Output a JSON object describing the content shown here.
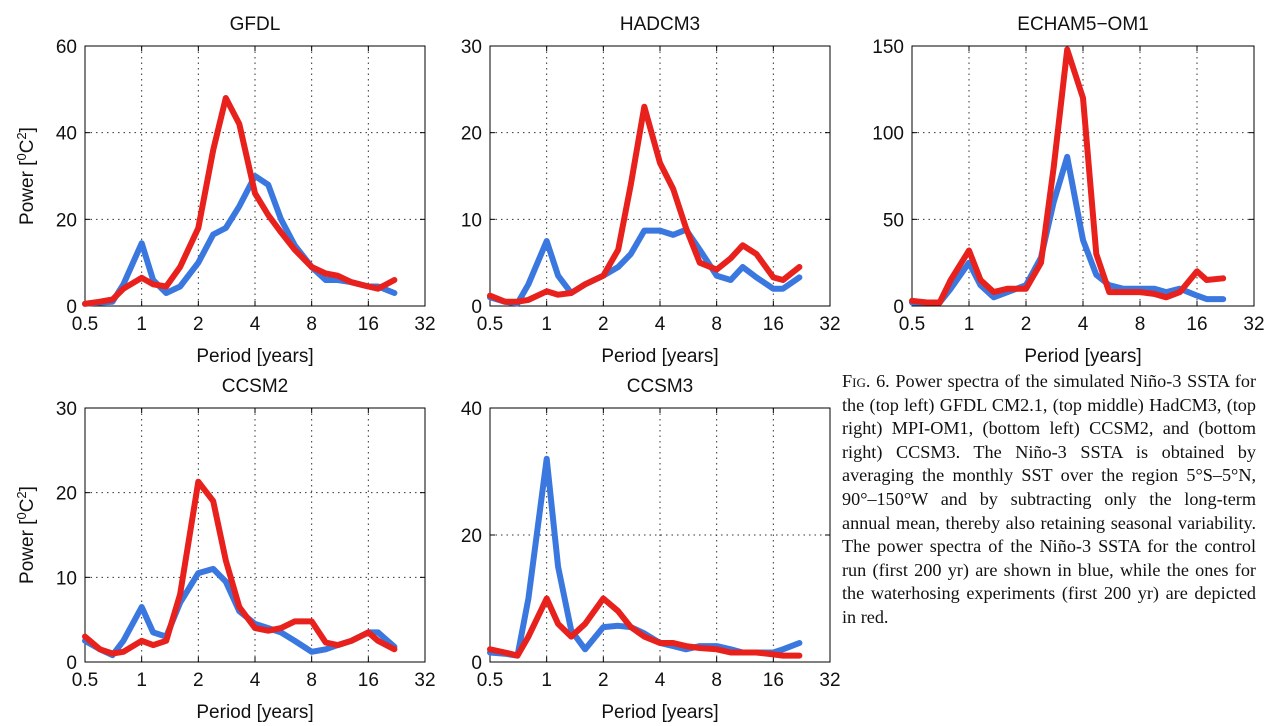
{
  "chart_data": [
    {
      "type": "line",
      "title": "GFDL",
      "xlabel": "Period [years]",
      "ylabel": "Power [0C2]",
      "xscale": "log2",
      "xlim": [
        0.5,
        32
      ],
      "ylim": [
        0,
        60
      ],
      "xticks": [
        "0.5",
        "1",
        "2",
        "4",
        "8",
        "16",
        "32"
      ],
      "yticks": [
        0,
        20,
        40,
        60
      ],
      "grid": true,
      "series": [
        {
          "color": "#3a78e0",
          "points": [
            [
              0.5,
              0.5
            ],
            [
              0.6,
              0.8
            ],
            [
              0.7,
              1
            ],
            [
              0.8,
              5
            ],
            [
              1,
              14.5
            ],
            [
              1.15,
              6
            ],
            [
              1.35,
              3
            ],
            [
              1.6,
              4.5
            ],
            [
              2,
              10
            ],
            [
              2.4,
              16.5
            ],
            [
              2.8,
              18
            ],
            [
              3.3,
              23
            ],
            [
              4,
              30
            ],
            [
              4.7,
              28
            ],
            [
              5.5,
              20
            ],
            [
              6.5,
              14
            ],
            [
              8,
              9
            ],
            [
              9.5,
              6
            ],
            [
              11,
              6
            ],
            [
              13,
              5.5
            ],
            [
              16,
              4.5
            ],
            [
              18,
              4.5
            ],
            [
              22,
              3
            ]
          ]
        },
        {
          "color": "#e8211d",
          "points": [
            [
              0.5,
              0.5
            ],
            [
              0.6,
              1
            ],
            [
              0.7,
              1.5
            ],
            [
              0.8,
              4
            ],
            [
              1,
              6.5
            ],
            [
              1.15,
              5
            ],
            [
              1.35,
              4.5
            ],
            [
              1.6,
              9
            ],
            [
              2,
              18
            ],
            [
              2.4,
              36
            ],
            [
              2.8,
              48
            ],
            [
              3.3,
              42
            ],
            [
              4,
              26
            ],
            [
              4.7,
              21
            ],
            [
              5.5,
              17
            ],
            [
              6.5,
              13
            ],
            [
              8,
              9
            ],
            [
              9.5,
              7.5
            ],
            [
              11,
              7
            ],
            [
              13,
              5.5
            ],
            [
              16,
              4.5
            ],
            [
              18,
              4
            ],
            [
              22,
              6
            ]
          ]
        }
      ]
    },
    {
      "type": "line",
      "title": "HADCM3",
      "xlabel": "Period [years]",
      "ylabel": "",
      "xscale": "log2",
      "xlim": [
        0.5,
        32
      ],
      "ylim": [
        0,
        30
      ],
      "xticks": [
        "0.5",
        "1",
        "2",
        "4",
        "8",
        "16",
        "32"
      ],
      "yticks": [
        0,
        10,
        20,
        30
      ],
      "grid": true,
      "series": [
        {
          "color": "#3a78e0",
          "points": [
            [
              0.5,
              1
            ],
            [
              0.6,
              0.5
            ],
            [
              0.7,
              0.3
            ],
            [
              0.8,
              2.5
            ],
            [
              1,
              7.5
            ],
            [
              1.15,
              3.5
            ],
            [
              1.35,
              1.5
            ],
            [
              1.6,
              2.5
            ],
            [
              2,
              3.5
            ],
            [
              2.4,
              4.5
            ],
            [
              2.8,
              6
            ],
            [
              3.3,
              8.7
            ],
            [
              4,
              8.7
            ],
            [
              4.7,
              8.2
            ],
            [
              5.5,
              8.8
            ],
            [
              6.5,
              6.5
            ],
            [
              8,
              3.5
            ],
            [
              9.5,
              3
            ],
            [
              11,
              4.5
            ],
            [
              13,
              3.3
            ],
            [
              16,
              2
            ],
            [
              18,
              2
            ],
            [
              22,
              3.3
            ]
          ]
        },
        {
          "color": "#e8211d",
          "points": [
            [
              0.5,
              1.2
            ],
            [
              0.6,
              0.5
            ],
            [
              0.7,
              0.5
            ],
            [
              0.8,
              0.7
            ],
            [
              1,
              1.7
            ],
            [
              1.15,
              1.3
            ],
            [
              1.35,
              1.5
            ],
            [
              1.6,
              2.5
            ],
            [
              2,
              3.5
            ],
            [
              2.4,
              6.5
            ],
            [
              2.8,
              14
            ],
            [
              3.3,
              23
            ],
            [
              4,
              16.5
            ],
            [
              4.7,
              13.5
            ],
            [
              5.5,
              9
            ],
            [
              6.5,
              5
            ],
            [
              8,
              4.2
            ],
            [
              9.5,
              5.5
            ],
            [
              11,
              7
            ],
            [
              13,
              6
            ],
            [
              16,
              3.3
            ],
            [
              18,
              3
            ],
            [
              22,
              4.5
            ]
          ]
        }
      ]
    },
    {
      "type": "line",
      "title": "ECHAM5−OM1",
      "xlabel": "Period [years]",
      "ylabel": "",
      "xscale": "log2",
      "xlim": [
        0.5,
        32
      ],
      "ylim": [
        0,
        150
      ],
      "xticks": [
        "0.5",
        "1",
        "2",
        "4",
        "8",
        "16",
        "32"
      ],
      "yticks": [
        0,
        50,
        100,
        150
      ],
      "grid": true,
      "series": [
        {
          "color": "#3a78e0",
          "points": [
            [
              0.5,
              2
            ],
            [
              0.6,
              2
            ],
            [
              0.7,
              2
            ],
            [
              0.8,
              10
            ],
            [
              1,
              25
            ],
            [
              1.15,
              12
            ],
            [
              1.35,
              5
            ],
            [
              1.6,
              8
            ],
            [
              2,
              12
            ],
            [
              2.4,
              28
            ],
            [
              2.8,
              60
            ],
            [
              3.3,
              86
            ],
            [
              4,
              38
            ],
            [
              4.7,
              18
            ],
            [
              5.5,
              12
            ],
            [
              6.5,
              10
            ],
            [
              8,
              10
            ],
            [
              9.5,
              10
            ],
            [
              11,
              8
            ],
            [
              13,
              10
            ],
            [
              16,
              6
            ],
            [
              18,
              4
            ],
            [
              22,
              4
            ]
          ]
        },
        {
          "color": "#e8211d",
          "points": [
            [
              0.5,
              3
            ],
            [
              0.6,
              2
            ],
            [
              0.7,
              2
            ],
            [
              0.8,
              15
            ],
            [
              1,
              32
            ],
            [
              1.15,
              15
            ],
            [
              1.35,
              8
            ],
            [
              1.6,
              10
            ],
            [
              2,
              10
            ],
            [
              2.4,
              25
            ],
            [
              2.8,
              80
            ],
            [
              3.3,
              148
            ],
            [
              4,
              120
            ],
            [
              4.7,
              30
            ],
            [
              5.5,
              8
            ],
            [
              6.5,
              8
            ],
            [
              8,
              8
            ],
            [
              9.5,
              7
            ],
            [
              11,
              5
            ],
            [
              13,
              8
            ],
            [
              16,
              20
            ],
            [
              18,
              15
            ],
            [
              22,
              16
            ]
          ]
        }
      ]
    },
    {
      "type": "line",
      "title": "CCSM2",
      "xlabel": "Period [years]",
      "ylabel": "Power [0C2]",
      "xscale": "log2",
      "xlim": [
        0.5,
        32
      ],
      "ylim": [
        0,
        30
      ],
      "xticks": [
        "0.5",
        "1",
        "2",
        "4",
        "8",
        "16",
        "32"
      ],
      "yticks": [
        0,
        10,
        20,
        30
      ],
      "grid": true,
      "series": [
        {
          "color": "#3a78e0",
          "points": [
            [
              0.5,
              2.5
            ],
            [
              0.6,
              1.5
            ],
            [
              0.7,
              0.8
            ],
            [
              0.8,
              2.5
            ],
            [
              1,
              6.5
            ],
            [
              1.15,
              3.5
            ],
            [
              1.35,
              3
            ],
            [
              1.6,
              7
            ],
            [
              2,
              10.5
            ],
            [
              2.4,
              11
            ],
            [
              2.8,
              9.5
            ],
            [
              3.3,
              6
            ],
            [
              4,
              4.5
            ],
            [
              4.7,
              4
            ],
            [
              5.5,
              3.5
            ],
            [
              6.5,
              2.5
            ],
            [
              8,
              1.2
            ],
            [
              9.5,
              1.5
            ],
            [
              11,
              2
            ],
            [
              13,
              2.5
            ],
            [
              16,
              3.5
            ],
            [
              18,
              3.5
            ],
            [
              22,
              1.8
            ]
          ]
        },
        {
          "color": "#e8211d",
          "points": [
            [
              0.5,
              3
            ],
            [
              0.6,
              1.5
            ],
            [
              0.7,
              1
            ],
            [
              0.8,
              1.2
            ],
            [
              1,
              2.5
            ],
            [
              1.15,
              2
            ],
            [
              1.35,
              2.5
            ],
            [
              1.6,
              8
            ],
            [
              2,
              21.3
            ],
            [
              2.4,
              19
            ],
            [
              2.8,
              12
            ],
            [
              3.3,
              6.5
            ],
            [
              4,
              4
            ],
            [
              4.7,
              3.7
            ],
            [
              5.5,
              4
            ],
            [
              6.5,
              4.8
            ],
            [
              8,
              4.8
            ],
            [
              9.5,
              2.3
            ],
            [
              11,
              2
            ],
            [
              13,
              2.5
            ],
            [
              16,
              3.5
            ],
            [
              18,
              2.5
            ],
            [
              22,
              1.5
            ]
          ]
        }
      ]
    },
    {
      "type": "line",
      "title": "CCSM3",
      "xlabel": "Period [years]",
      "ylabel": "",
      "xscale": "log2",
      "xlim": [
        0.5,
        32
      ],
      "ylim": [
        0,
        40
      ],
      "xticks": [
        "0.5",
        "1",
        "2",
        "4",
        "8",
        "16",
        "32"
      ],
      "yticks": [
        0,
        20,
        40
      ],
      "grid": true,
      "series": [
        {
          "color": "#3a78e0",
          "points": [
            [
              0.5,
              1.5
            ],
            [
              0.6,
              1.3
            ],
            [
              0.7,
              1
            ],
            [
              0.8,
              10
            ],
            [
              1,
              32
            ],
            [
              1.15,
              15
            ],
            [
              1.35,
              5
            ],
            [
              1.6,
              2
            ],
            [
              2,
              5.5
            ],
            [
              2.4,
              5.7
            ],
            [
              2.8,
              5.5
            ],
            [
              3.3,
              4.5
            ],
            [
              4,
              3
            ],
            [
              4.7,
              2.5
            ],
            [
              5.5,
              2
            ],
            [
              6.5,
              2.5
            ],
            [
              8,
              2.5
            ],
            [
              9.5,
              2
            ],
            [
              11,
              1.5
            ],
            [
              13,
              1.5
            ],
            [
              16,
              1.5
            ],
            [
              18,
              2
            ],
            [
              22,
              3
            ]
          ]
        },
        {
          "color": "#e8211d",
          "points": [
            [
              0.5,
              2
            ],
            [
              0.6,
              1.5
            ],
            [
              0.7,
              1
            ],
            [
              0.8,
              4
            ],
            [
              1,
              10
            ],
            [
              1.15,
              6
            ],
            [
              1.35,
              4
            ],
            [
              1.6,
              6
            ],
            [
              2,
              10
            ],
            [
              2.4,
              8
            ],
            [
              2.8,
              5.5
            ],
            [
              3.3,
              4
            ],
            [
              4,
              3
            ],
            [
              4.7,
              3
            ],
            [
              5.5,
              2.5
            ],
            [
              6.5,
              2.2
            ],
            [
              8,
              2
            ],
            [
              9.5,
              1.5
            ],
            [
              11,
              1.5
            ],
            [
              13,
              1.5
            ],
            [
              16,
              1.2
            ],
            [
              18,
              1
            ],
            [
              22,
              1
            ]
          ]
        }
      ]
    }
  ],
  "caption": {
    "label": "Fig. 6.",
    "text": "Power spectra of the simulated Niño-3 SSTA for the (top left) GFDL CM2.1, (top middle) HadCM3, (top right) MPI-OM1, (bottom left) CCSM2, and (bottom right) CCSM3. The Niño-3 SSTA is obtained by averaging the monthly SST over the region 5°S–5°N, 90°–150°W and by subtracting only the long-term annual mean, thereby also retaining seasonal variability. The power spectra of the Niño-3 SSTA for the control run (first 200 yr) are shown in blue, while the ones for the waterhosing experiments (first 200 yr) are depicted in red."
  }
}
